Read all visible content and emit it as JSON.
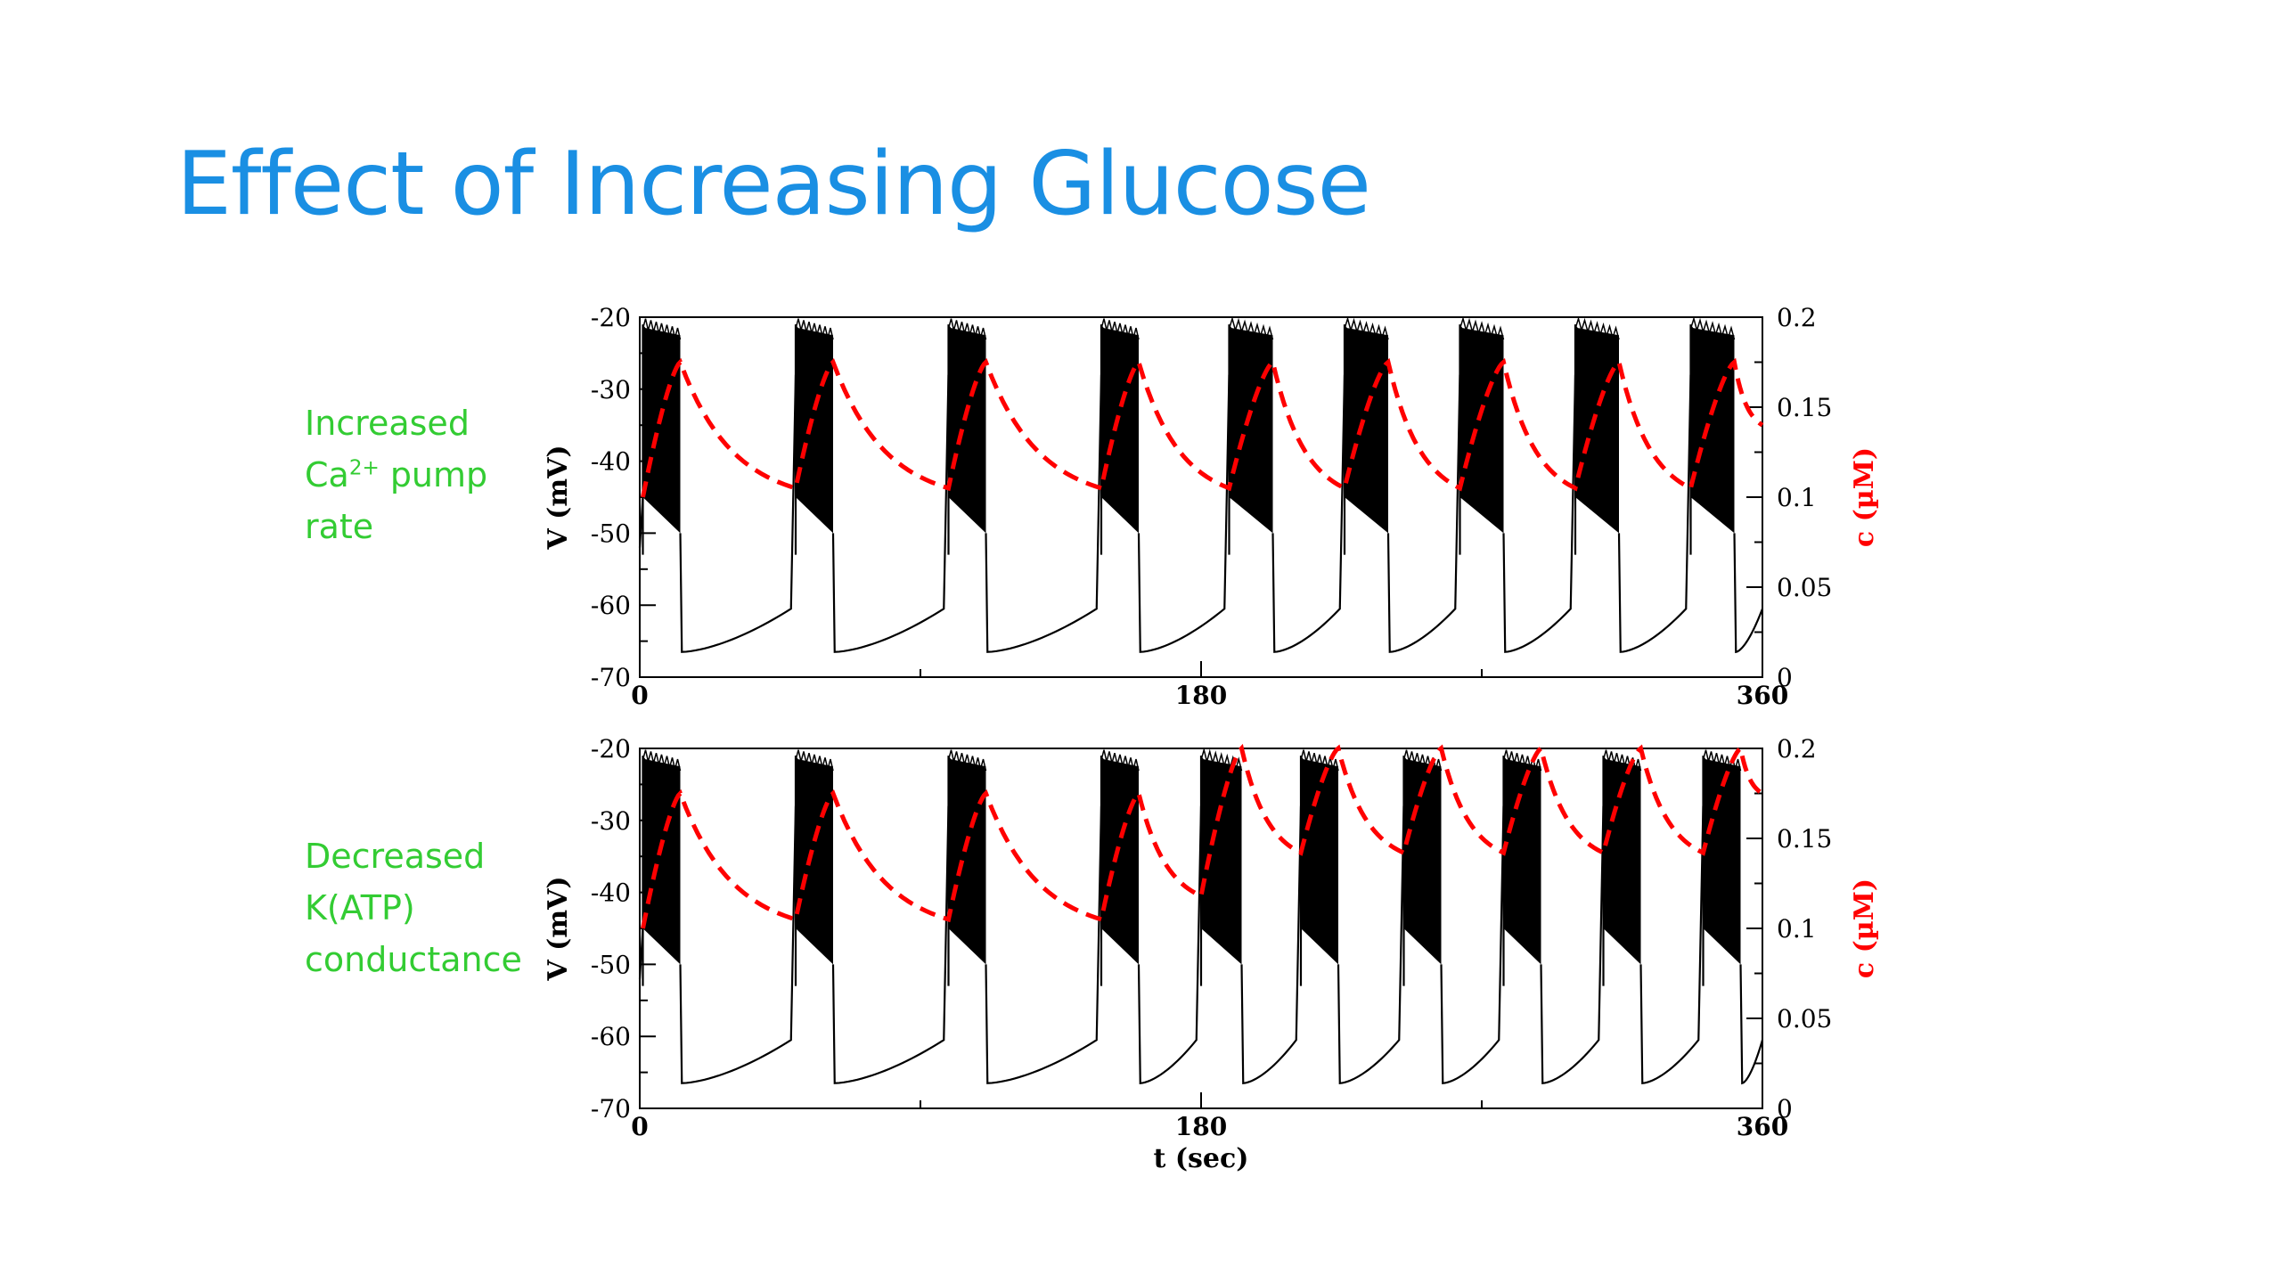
{
  "slide": {
    "title": "Effect of Increasing Glucose",
    "labels": [
      {
        "line1": "Increased",
        "line2_base": "Ca",
        "line2_sup": "2+",
        "line2_rest": " pump",
        "line3": "rate"
      },
      {
        "line1": "Decreased",
        "line2": "K(ATP)",
        "line3": "conductance"
      }
    ]
  },
  "chart_data": [
    {
      "type": "line",
      "panel": "Increased Ca2+ pump rate",
      "x_range": [
        0,
        360
      ],
      "x_ticks": [
        "0",
        "180",
        "360"
      ],
      "xlabel": "",
      "y_left": {
        "label": "V (mV)",
        "range": [
          -70,
          -20
        ],
        "ticks": [
          "-20",
          "-30",
          "-40",
          "-50",
          "-60",
          "-70"
        ],
        "color": "#000000"
      },
      "y_right": {
        "label": "c (µM)",
        "range": [
          0,
          0.2
        ],
        "ticks": [
          "0.2",
          "0.15",
          "0.1",
          "0.05",
          "0"
        ],
        "color": "#ff0000"
      },
      "series": [
        {
          "axis": "left",
          "color": "#000000",
          "style": "solid",
          "bursts": [
            [
              1,
              13
            ],
            [
              50,
              62
            ],
            [
              99,
              111
            ],
            [
              148,
              160
            ],
            [
              189,
              203
            ],
            [
              226,
              240
            ],
            [
              263,
              277
            ],
            [
              300,
              314
            ],
            [
              337,
              351
            ]
          ],
          "burst_top": -21,
          "burst_bottom_start": -45,
          "burst_bottom_end": -50,
          "silent_start": -66.5,
          "silent_end": -60.5
        },
        {
          "axis": "right",
          "color": "#ff0000",
          "style": "dashed",
          "points": [
            [
              1,
              0.1
            ],
            [
              13,
              0.175
            ],
            [
              50,
              0.105
            ],
            [
              62,
              0.175
            ],
            [
              99,
              0.105
            ],
            [
              111,
              0.175
            ],
            [
              148,
              0.105
            ],
            [
              160,
              0.175
            ],
            [
              189,
              0.105
            ],
            [
              203,
              0.175
            ],
            [
              226,
              0.105
            ],
            [
              240,
              0.175
            ],
            [
              263,
              0.105
            ],
            [
              277,
              0.175
            ],
            [
              300,
              0.105
            ],
            [
              314,
              0.175
            ],
            [
              337,
              0.105
            ],
            [
              351,
              0.175
            ],
            [
              360,
              0.14
            ]
          ]
        }
      ]
    },
    {
      "type": "line",
      "panel": "Decreased K(ATP) conductance",
      "x_range": [
        0,
        360
      ],
      "x_ticks": [
        "0",
        "180",
        "360"
      ],
      "xlabel": "t (sec)",
      "y_left": {
        "label": "V (mV)",
        "range": [
          -70,
          -20
        ],
        "ticks": [
          "-20",
          "-30",
          "-40",
          "-50",
          "-60",
          "-70"
        ],
        "color": "#000000"
      },
      "y_right": {
        "label": "c (µM)",
        "range": [
          0,
          0.2
        ],
        "ticks": [
          "0.2",
          "0.15",
          "0.1",
          "0.05",
          "0"
        ],
        "color": "#ff0000"
      },
      "series": [
        {
          "axis": "left",
          "color": "#000000",
          "style": "solid",
          "bursts": [
            [
              1,
              13
            ],
            [
              50,
              62
            ],
            [
              99,
              111
            ],
            [
              148,
              160
            ],
            [
              180,
              193
            ],
            [
              212,
              224
            ],
            [
              245,
              257
            ],
            [
              277,
              289
            ],
            [
              309,
              321
            ],
            [
              341,
              353
            ]
          ],
          "burst_top": -21,
          "burst_bottom_start": -45,
          "burst_bottom_end": -50,
          "silent_start": -66.5,
          "silent_end": -60.5
        },
        {
          "axis": "right",
          "color": "#ff0000",
          "style": "dashed",
          "points": [
            [
              1,
              0.1
            ],
            [
              13,
              0.175
            ],
            [
              50,
              0.105
            ],
            [
              62,
              0.175
            ],
            [
              99,
              0.105
            ],
            [
              111,
              0.175
            ],
            [
              148,
              0.105
            ],
            [
              160,
              0.175
            ],
            [
              180,
              0.118
            ],
            [
              193,
              0.2
            ],
            [
              212,
              0.142
            ],
            [
              224,
              0.2
            ],
            [
              245,
              0.142
            ],
            [
              257,
              0.2
            ],
            [
              277,
              0.142
            ],
            [
              289,
              0.2
            ],
            [
              309,
              0.142
            ],
            [
              321,
              0.2
            ],
            [
              341,
              0.142
            ],
            [
              353,
              0.2
            ],
            [
              360,
              0.175
            ]
          ]
        }
      ]
    }
  ]
}
